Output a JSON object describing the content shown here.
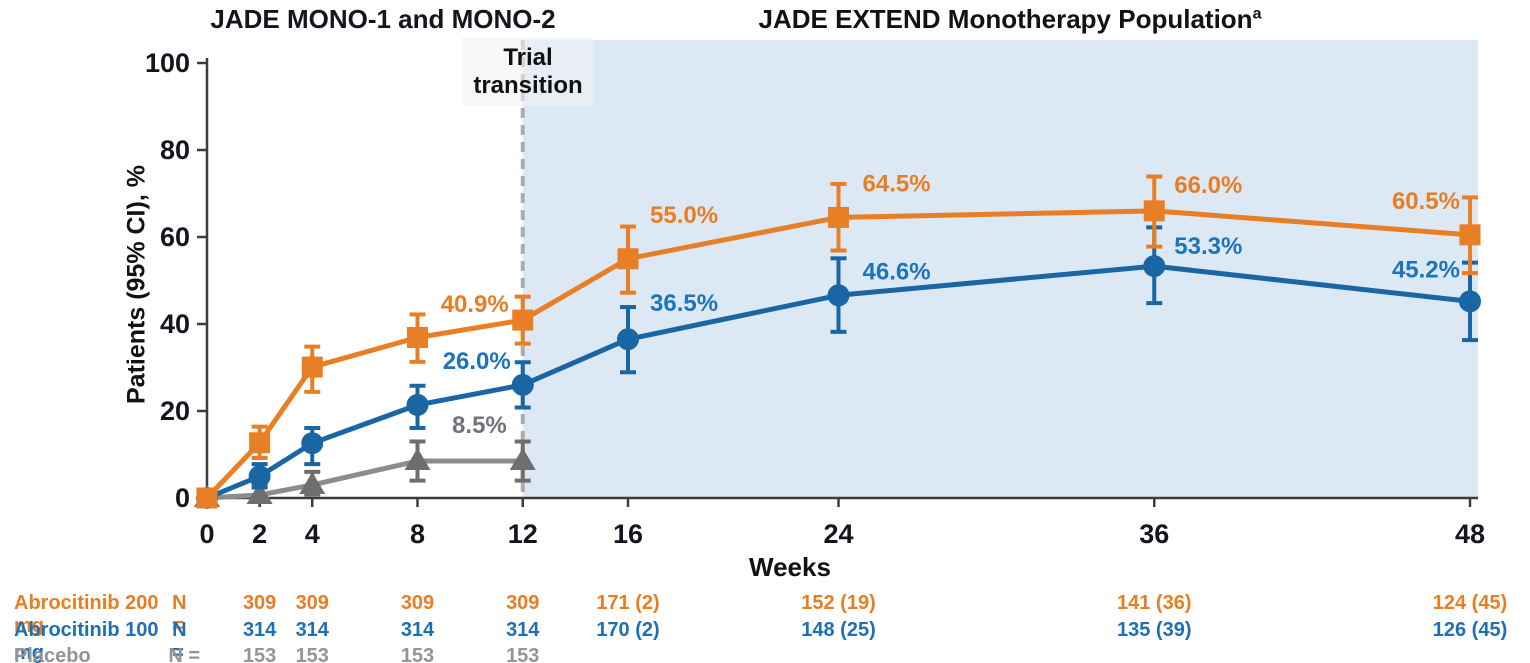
{
  "titles": {
    "left": "JADE MONO-1 and MONO-2",
    "right": "JADE EXTEND Monotherapy Population",
    "right_sup": "a"
  },
  "annotations": {
    "trial_transition_line1": "Trial",
    "trial_transition_line2": "transition"
  },
  "chart_data": {
    "type": "line",
    "xlabel": "Weeks",
    "ylabel": "Patients (95% CI), %",
    "ylim": [
      0,
      100
    ],
    "yticks": [
      0,
      20,
      40,
      60,
      80,
      100
    ],
    "xticks": [
      0,
      2,
      4,
      8,
      12,
      16,
      24,
      36,
      48
    ],
    "grid": false,
    "legend_position": "none",
    "shaded_region": {
      "from_week": 12,
      "to_week": 48.3,
      "top_pct": 105.3,
      "color": "#dce8f4",
      "label": "JADE EXTEND Monotherapy Population"
    },
    "transition_week": 12,
    "colors": {
      "axis": "#3c3c3c",
      "tick_text": "#15151f",
      "dash_line": "#acacac"
    },
    "series": [
      {
        "name": "Placebo",
        "marker": "triangle",
        "line_color": "#8c8c8c",
        "marker_color": "#6e6e6e",
        "label_color": "#73737b",
        "x": [
          0,
          2,
          4,
          8,
          12
        ],
        "values": [
          0,
          0.7,
          3.0,
          8.5,
          8.5
        ],
        "ci_low": [
          0,
          0.0,
          0.8,
          4.0,
          4.0
        ],
        "ci_high": [
          0,
          3.0,
          6.0,
          13.0,
          13.0
        ],
        "labels": [
          {
            "week": 12,
            "text": "8.5%",
            "anchor": "end",
            "dx": -16,
            "dy": -28
          }
        ]
      },
      {
        "name": "Abrocitinib 100 mg",
        "marker": "circle",
        "line_color": "#1a66a5",
        "marker_color": "#1a66a5",
        "label_color": "#1c74ba",
        "x": [
          0,
          2,
          4,
          8,
          12,
          16,
          24,
          36,
          48
        ],
        "values": [
          0,
          5.0,
          12.6,
          21.4,
          26.0,
          36.5,
          46.6,
          53.3,
          45.2
        ],
        "ci_low": [
          0,
          2.4,
          7.8,
          16.1,
          20.8,
          28.9,
          38.2,
          44.8,
          36.3
        ],
        "ci_high": [
          0,
          7.8,
          16.1,
          25.8,
          31.2,
          43.9,
          55.1,
          62.2,
          54.1
        ],
        "labels": [
          {
            "week": 12,
            "text": "26.0%",
            "anchor": "end",
            "dx": -12,
            "dy": -16
          },
          {
            "week": 16,
            "text": "36.5%",
            "anchor": "start",
            "dx": 22,
            "dy": -28
          },
          {
            "week": 24,
            "text": "46.6%",
            "anchor": "start",
            "dx": 24,
            "dy": -16
          },
          {
            "week": 36,
            "text": "53.3%",
            "anchor": "start",
            "dx": 20,
            "dy": -12
          },
          {
            "week": 48,
            "text": "45.2%",
            "anchor": "end",
            "dx": -10,
            "dy": -24
          }
        ]
      },
      {
        "name": "Abrocitinib 200 mg",
        "marker": "square",
        "line_color": "#e87e25",
        "marker_color": "#e87e25",
        "label_color": "#e87e23",
        "x": [
          0,
          2,
          4,
          8,
          12,
          16,
          24,
          36,
          48
        ],
        "values": [
          0,
          12.7,
          30.1,
          36.9,
          40.9,
          55.0,
          64.5,
          66.0,
          60.5
        ],
        "ci_low": [
          0,
          9.2,
          24.4,
          31.3,
          35.5,
          47.2,
          56.9,
          57.8,
          51.7
        ],
        "ci_high": [
          0,
          16.4,
          34.8,
          42.2,
          46.3,
          62.4,
          72.2,
          73.9,
          69.1
        ],
        "labels": [
          {
            "week": 12,
            "text": "40.9%",
            "anchor": "end",
            "dx": -14,
            "dy": -8
          },
          {
            "week": 16,
            "text": "55.0%",
            "anchor": "start",
            "dx": 22,
            "dy": -36
          },
          {
            "week": 24,
            "text": "64.5%",
            "anchor": "start",
            "dx": 24,
            "dy": -26
          },
          {
            "week": 36,
            "text": "66.0%",
            "anchor": "start",
            "dx": 20,
            "dy": -18
          },
          {
            "week": 48,
            "text": "60.5%",
            "anchor": "end",
            "dx": -10,
            "dy": -26
          }
        ]
      }
    ]
  },
  "table": {
    "columns_weeks": [
      2,
      4,
      8,
      12,
      16,
      24,
      36,
      48
    ],
    "rows": [
      {
        "label": "Abrocitinib 200 mg",
        "n_label": "N =",
        "color": "#e87e23",
        "values": [
          "309",
          "309",
          "309",
          "309",
          "171 (2)",
          "152 (19)",
          "141 (36)",
          "124 (45)"
        ]
      },
      {
        "label": "Abrocitinib 100 mg",
        "n_label": "N =",
        "color": "#1f6fb4",
        "values": [
          "314",
          "314",
          "314",
          "314",
          "170 (2)",
          "148 (25)",
          "135 (39)",
          "126 (45)"
        ]
      },
      {
        "label": "Placebo",
        "n_label": "N =",
        "color": "#949494",
        "values": [
          "153",
          "153",
          "153",
          "153",
          "",
          "",
          "",
          ""
        ]
      }
    ]
  }
}
